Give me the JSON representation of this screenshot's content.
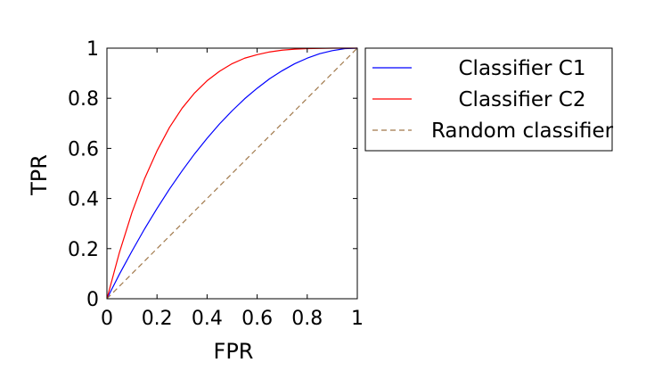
{
  "chart_data": {
    "type": "line",
    "title": "",
    "xlabel": "FPR",
    "ylabel": "TPR",
    "xlim": [
      0,
      1
    ],
    "ylim": [
      0,
      1
    ],
    "xticks": [
      0,
      0.2,
      0.4,
      0.6,
      0.8,
      1
    ],
    "yticks": [
      0,
      0.2,
      0.4,
      0.6,
      0.8,
      1
    ],
    "xtick_labels": [
      "0",
      "0.2",
      "0.4",
      "0.6",
      "0.8",
      "1"
    ],
    "ytick_labels": [
      "0",
      "0.2",
      "0.4",
      "0.6",
      "0.8",
      "1"
    ],
    "grid": false,
    "legend_position": "outside-right-top",
    "x": [
      0,
      0.05,
      0.1,
      0.15,
      0.2,
      0.25,
      0.3,
      0.35,
      0.4,
      0.45,
      0.5,
      0.55,
      0.6,
      0.65,
      0.7,
      0.75,
      0.8,
      0.85,
      0.9,
      0.95,
      1
    ],
    "series": [
      {
        "name": "Classifier C1",
        "color": "#0000ff",
        "style": "solid",
        "values": [
          0,
          0.098,
          0.19,
          0.278,
          0.36,
          0.438,
          0.51,
          0.578,
          0.64,
          0.698,
          0.75,
          0.798,
          0.84,
          0.878,
          0.91,
          0.938,
          0.96,
          0.978,
          0.99,
          0.998,
          1
        ]
      },
      {
        "name": "Classifier C2",
        "color": "#ff0000",
        "style": "solid",
        "values": [
          0,
          0.185,
          0.344,
          0.478,
          0.59,
          0.684,
          0.76,
          0.821,
          0.87,
          0.908,
          0.938,
          0.96,
          0.974,
          0.985,
          0.992,
          0.996,
          0.998,
          0.999,
          1,
          1,
          1
        ]
      },
      {
        "name": "Random classifier",
        "color": "#a0784a",
        "style": "dashed",
        "values": [
          0,
          0.05,
          0.1,
          0.15,
          0.2,
          0.25,
          0.3,
          0.35,
          0.4,
          0.45,
          0.5,
          0.55,
          0.6,
          0.65,
          0.7,
          0.75,
          0.8,
          0.85,
          0.9,
          0.95,
          1
        ]
      }
    ]
  }
}
